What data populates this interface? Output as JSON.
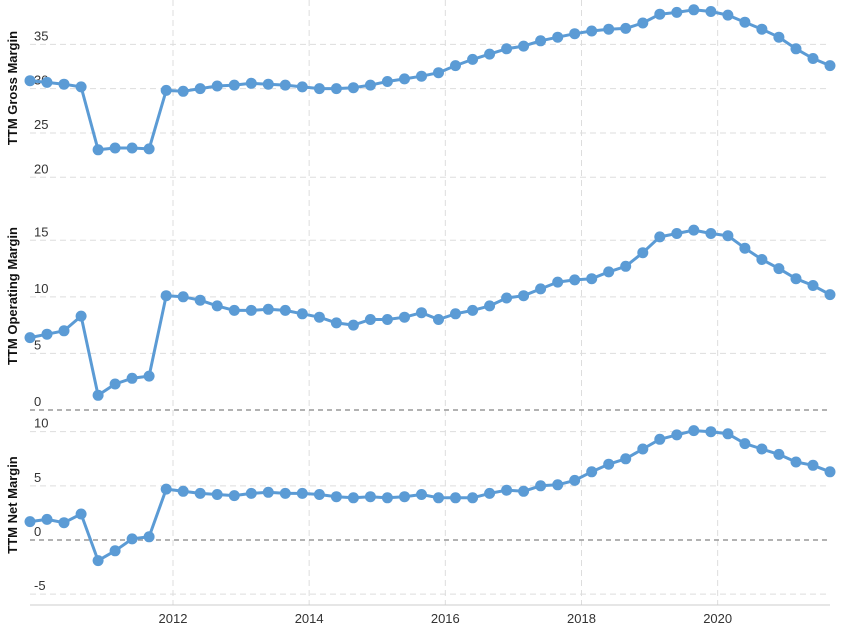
{
  "chart_data": [
    {
      "type": "line",
      "ylabel": "TTM Gross Margin",
      "ylim": [
        18,
        40
      ],
      "yticks": [
        20,
        25,
        30,
        35
      ],
      "color": "#5b9bd5",
      "x": [
        2009.9,
        2010.15,
        2010.4,
        2010.65,
        2010.9,
        2011.15,
        2011.4,
        2011.65,
        2011.9,
        2012.15,
        2012.4,
        2012.65,
        2012.9,
        2013.15,
        2013.4,
        2013.65,
        2013.9,
        2014.15,
        2014.4,
        2014.65,
        2014.9,
        2015.15,
        2015.4,
        2015.65,
        2015.9,
        2016.15,
        2016.4,
        2016.65,
        2016.9,
        2017.15,
        2017.4,
        2017.65,
        2017.9,
        2018.15,
        2018.4,
        2018.65,
        2018.9,
        2019.15,
        2019.4,
        2019.65,
        2019.9,
        2020.15,
        2020.4,
        2020.65,
        2020.9,
        2021.15,
        2021.4,
        2021.65
      ],
      "values": [
        30.9,
        30.7,
        30.5,
        30.2,
        23.1,
        23.3,
        23.3,
        23.2,
        29.8,
        29.7,
        30.0,
        30.3,
        30.4,
        30.6,
        30.5,
        30.4,
        30.2,
        30.0,
        30.0,
        30.1,
        30.4,
        30.8,
        31.1,
        31.4,
        31.8,
        32.6,
        33.3,
        33.9,
        34.5,
        34.8,
        35.4,
        35.8,
        36.2,
        36.5,
        36.7,
        36.8,
        37.4,
        38.4,
        38.6,
        38.9,
        38.7,
        38.3,
        37.5,
        36.7,
        35.8,
        34.5,
        33.4,
        32.6
      ]
    },
    {
      "type": "line",
      "ylabel": "TTM Operating Margin",
      "ylim": [
        0,
        19
      ],
      "yticks": [
        0,
        5,
        10,
        15
      ],
      "color": "#5b9bd5",
      "x": [
        2009.9,
        2010.15,
        2010.4,
        2010.65,
        2010.9,
        2011.15,
        2011.4,
        2011.65,
        2011.9,
        2012.15,
        2012.4,
        2012.65,
        2012.9,
        2013.15,
        2013.4,
        2013.65,
        2013.9,
        2014.15,
        2014.4,
        2014.65,
        2014.9,
        2015.15,
        2015.4,
        2015.65,
        2015.9,
        2016.15,
        2016.4,
        2016.65,
        2016.9,
        2017.15,
        2017.4,
        2017.65,
        2017.9,
        2018.15,
        2018.4,
        2018.65,
        2018.9,
        2019.15,
        2019.4,
        2019.65,
        2019.9,
        2020.15,
        2020.4,
        2020.65,
        2020.9,
        2021.15,
        2021.4,
        2021.65
      ],
      "values": [
        6.4,
        6.7,
        7.0,
        8.3,
        1.3,
        2.3,
        2.8,
        3.0,
        10.1,
        10.0,
        9.7,
        9.2,
        8.8,
        8.8,
        8.9,
        8.8,
        8.5,
        8.2,
        7.7,
        7.5,
        8.0,
        8.0,
        8.2,
        8.6,
        8.0,
        8.5,
        8.8,
        9.2,
        9.9,
        10.1,
        10.7,
        11.3,
        11.5,
        11.6,
        12.2,
        12.7,
        13.9,
        15.3,
        15.6,
        15.9,
        15.6,
        15.4,
        14.3,
        13.3,
        12.5,
        11.6,
        11.0,
        10.2
      ]
    },
    {
      "type": "line",
      "ylabel": "TTM Net Margin",
      "ylim": [
        -6,
        12
      ],
      "yticks": [
        -5,
        0,
        5,
        10
      ],
      "color": "#5b9bd5",
      "x": [
        2009.9,
        2010.15,
        2010.4,
        2010.65,
        2010.9,
        2011.15,
        2011.4,
        2011.65,
        2011.9,
        2012.15,
        2012.4,
        2012.65,
        2012.9,
        2013.15,
        2013.4,
        2013.65,
        2013.9,
        2014.15,
        2014.4,
        2014.65,
        2014.9,
        2015.15,
        2015.4,
        2015.65,
        2015.9,
        2016.15,
        2016.4,
        2016.65,
        2016.9,
        2017.15,
        2017.4,
        2017.65,
        2017.9,
        2018.15,
        2018.4,
        2018.65,
        2018.9,
        2019.15,
        2019.4,
        2019.65,
        2019.9,
        2020.15,
        2020.4,
        2020.65,
        2020.9,
        2021.15,
        2021.4,
        2021.65
      ],
      "values": [
        1.7,
        1.9,
        1.6,
        2.4,
        -1.9,
        -1.0,
        0.1,
        0.3,
        4.7,
        4.5,
        4.3,
        4.2,
        4.1,
        4.3,
        4.4,
        4.3,
        4.3,
        4.2,
        4.0,
        3.9,
        4.0,
        3.9,
        4.0,
        4.2,
        3.9,
        3.9,
        3.9,
        4.3,
        4.6,
        4.5,
        5.0,
        5.1,
        5.5,
        6.3,
        7.0,
        7.5,
        8.4,
        9.3,
        9.7,
        10.1,
        10.0,
        9.8,
        8.9,
        8.4,
        7.9,
        7.2,
        6.9,
        6.3
      ]
    }
  ],
  "x_axis": {
    "xlim": [
      2009.9,
      2021.65
    ],
    "ticks": [
      {
        "value": 2012,
        "label": "2012"
      },
      {
        "value": 2014,
        "label": "2014"
      },
      {
        "value": 2016,
        "label": "2016"
      },
      {
        "value": 2018,
        "label": "2018"
      },
      {
        "value": 2020,
        "label": "2020"
      }
    ],
    "grid": true
  }
}
